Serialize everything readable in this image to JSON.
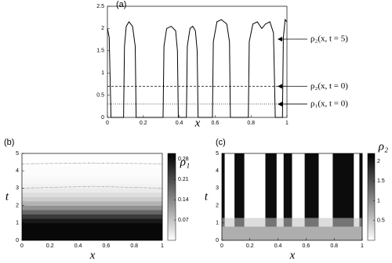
{
  "chart_data": [
    {
      "type": "line",
      "panel_label": "(a)",
      "xlabel": "x",
      "xlim": [
        0,
        1
      ],
      "ylim": [
        0,
        2.5
      ],
      "xticks": [
        0,
        0.2,
        0.4,
        0.6,
        0.8,
        1
      ],
      "yticks": [
        0,
        0.5,
        1,
        1.5,
        2,
        2.5
      ],
      "series": [
        {
          "name": "ρ₂(x, t = 5)",
          "color": "#000000",
          "line_style": "solid",
          "x": [
            0,
            0.01,
            0.02,
            0.09,
            0.095,
            0.105,
            0.12,
            0.14,
            0.155,
            0.16,
            0.31,
            0.315,
            0.33,
            0.355,
            0.38,
            0.39,
            0.395,
            0.44,
            0.445,
            0.46,
            0.475,
            0.49,
            0.5,
            0.505,
            0.585,
            0.59,
            0.61,
            0.635,
            0.665,
            0.68,
            0.685,
            0.785,
            0.79,
            0.81,
            0.835,
            0.86,
            0.88,
            0.905,
            0.925,
            0.935,
            0.975,
            0.98,
            0.99,
            1
          ],
          "values": [
            2.0,
            1.8,
            0,
            0,
            1.6,
            2.05,
            2.15,
            2.05,
            1.6,
            0,
            0,
            1.6,
            2.0,
            2.05,
            1.95,
            1.5,
            0,
            0,
            1.6,
            2.0,
            2.05,
            1.95,
            1.5,
            0,
            0,
            1.7,
            2.15,
            2.2,
            2.1,
            1.7,
            0,
            0,
            1.7,
            2.1,
            2.15,
            2.0,
            2.1,
            2.15,
            1.9,
            0,
            0,
            1.8,
            2.2,
            2.15
          ]
        },
        {
          "name": "ρ₂(x, t = 0)",
          "color": "#000000",
          "line_style": "dashed",
          "x": [
            0,
            1
          ],
          "values": [
            0.7,
            0.7
          ]
        },
        {
          "name": "ρ₁(x, t = 0)",
          "color": "#000000",
          "line_style": "dotted",
          "x": [
            0,
            1
          ],
          "values": [
            0.3,
            0.3
          ]
        }
      ]
    },
    {
      "type": "heatmap",
      "panel_label": "(b)",
      "xlabel": "x",
      "ylabel": "t",
      "colorbar_label": "ρ₁",
      "xlim": [
        0,
        1
      ],
      "ylim": [
        0,
        5
      ],
      "xticks": [
        0,
        0.2,
        0.4,
        0.6,
        0.8,
        1
      ],
      "yticks": [
        0,
        1,
        2,
        3,
        4,
        5
      ],
      "clim": [
        0,
        0.3
      ],
      "cticks": [
        0.07,
        0.14,
        0.21,
        0.28
      ],
      "x_edges": [
        0,
        1
      ],
      "y_edges": [
        0,
        0.25,
        0.5,
        0.75,
        1,
        1.25,
        1.5,
        1.75,
        2,
        2.25,
        2.5,
        2.75,
        3,
        3.25,
        3.5,
        3.75,
        4,
        4.25,
        4.5,
        4.75,
        5
      ],
      "z": [
        [
          0.29
        ],
        [
          0.29
        ],
        [
          0.29
        ],
        [
          0.29
        ],
        [
          0.27
        ],
        [
          0.23
        ],
        [
          0.18
        ],
        [
          0.13
        ],
        [
          0.09
        ],
        [
          0.06
        ],
        [
          0.04
        ],
        [
          0.025
        ],
        [
          0.015
        ],
        [
          0.01
        ],
        [
          0.006
        ],
        [
          0.004
        ],
        [
          0.003
        ],
        [
          0.002
        ],
        [
          0.001
        ],
        [
          0.001
        ]
      ],
      "contours": [
        {
          "color": "#999999",
          "x": [
            0,
            0.5,
            1
          ],
          "y": [
            3.0,
            3.1,
            3.0
          ]
        },
        {
          "color": "#999999",
          "x": [
            0,
            0.5,
            1
          ],
          "y": [
            4.4,
            4.45,
            4.4
          ]
        }
      ]
    },
    {
      "type": "heatmap",
      "panel_label": "(c)",
      "xlabel": "x",
      "ylabel": "t",
      "colorbar_label": "ρ₂",
      "xlim": [
        0,
        1
      ],
      "ylim": [
        0,
        5
      ],
      "xticks": [
        0,
        0.2,
        0.4,
        0.6,
        0.8,
        1
      ],
      "yticks": [
        0,
        1,
        2,
        3,
        4,
        5
      ],
      "clim": [
        0,
        2.2
      ],
      "cticks": [
        0.5,
        1,
        1.5,
        2
      ],
      "x_edges": [
        0,
        0.02,
        0.09,
        0.16,
        0.31,
        0.39,
        0.44,
        0.5,
        0.59,
        0.69,
        0.79,
        0.94,
        0.98,
        1
      ],
      "y_edges": [
        0,
        0.8,
        1.3,
        5
      ],
      "z": [
        [
          0.7,
          0.7,
          0.7,
          0.7,
          0.7,
          0.7,
          0.7,
          0.7,
          0.7,
          0.7,
          0.7,
          0.7,
          0.7
        ],
        [
          1.2,
          0.3,
          1.2,
          0.3,
          1.2,
          0.3,
          1.2,
          0.3,
          1.2,
          0.3,
          1.2,
          0.3,
          1.2
        ],
        [
          2.1,
          0,
          2.1,
          0,
          2.1,
          0,
          2.1,
          0,
          2.1,
          0,
          2.1,
          0,
          2.1
        ]
      ]
    }
  ]
}
